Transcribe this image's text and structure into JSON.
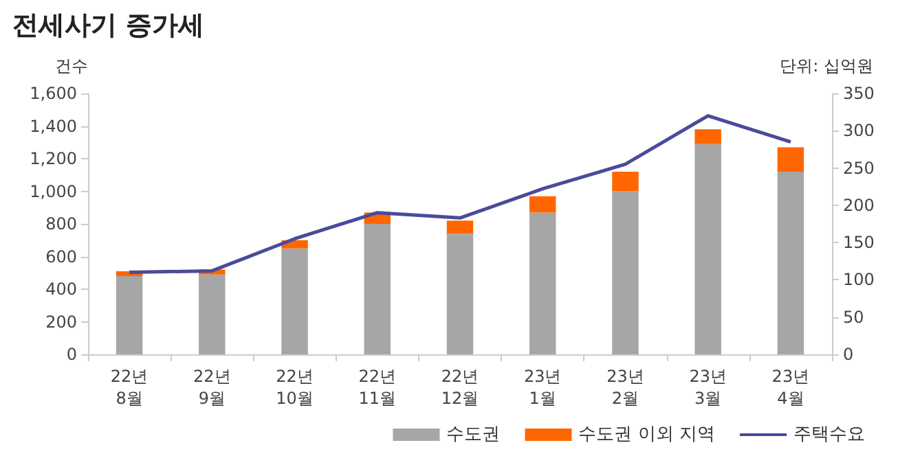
{
  "chart_data": {
    "type": "bar",
    "title": "전세사기 증가세",
    "ylabel": "건수",
    "y2label": "단위: 십억원",
    "categories": [
      "22년\n8월",
      "22년\n9월",
      "22년\n10월",
      "22년\n11월",
      "22년\n12월",
      "23년\n1월",
      "23년\n2월",
      "23년\n3월",
      "23년\n4월"
    ],
    "stacked": true,
    "series": [
      {
        "name": "수도권",
        "color": "#a6a6a6",
        "values": [
          480,
          490,
          650,
          800,
          740,
          870,
          1000,
          1290,
          1120
        ]
      },
      {
        "name": "수도권 이외 지역",
        "color": "#ff6600",
        "values": [
          30,
          30,
          50,
          70,
          80,
          100,
          120,
          90,
          150
        ]
      },
      {
        "name": "주택수요",
        "type": "line",
        "axis": "y2",
        "color": "#4a4a9c",
        "values": [
          110,
          112,
          155,
          190,
          183,
          222,
          255,
          320,
          285
        ]
      }
    ],
    "ylim": [
      0,
      1600
    ],
    "yticks": [
      0,
      {
        "value": 200,
        "label": "200"
      },
      {
        "value": 400,
        "label": "400"
      },
      {
        "value": 600,
        "label": "600"
      },
      {
        "value": 800,
        "label": "800"
      },
      {
        "value": 1000,
        "label": "1,000"
      },
      {
        "value": 1200,
        "label": "1,200"
      },
      {
        "value": 1400,
        "label": "1,400"
      },
      {
        "value": 1600,
        "label": "1,600"
      }
    ],
    "y2lim": [
      0,
      350
    ],
    "y2ticks": [
      0,
      50,
      100,
      150,
      200,
      250,
      300,
      350
    ],
    "grid": false,
    "legend": "bottom",
    "marker": "none"
  }
}
